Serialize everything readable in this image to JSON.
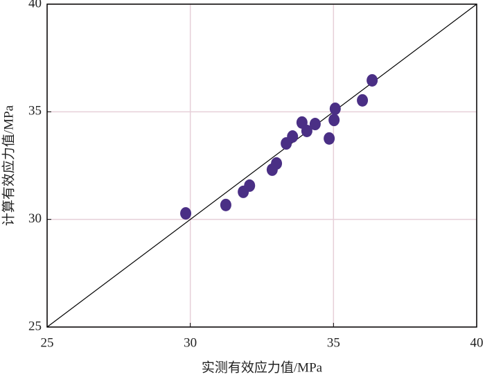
{
  "chart_data": {
    "type": "scatter",
    "x_label": "实测有效应力值/MPa",
    "y_label": "计算有效应力值/MPa",
    "x": [
      29.84,
      31.24,
      31.85,
      32.07,
      32.86,
      33.01,
      33.35,
      33.57,
      33.9,
      34.07,
      34.36,
      34.85,
      35.02,
      35.06,
      36.01,
      36.35
    ],
    "values": [
      30.28,
      30.67,
      31.28,
      31.57,
      32.31,
      32.6,
      33.53,
      33.85,
      34.5,
      34.11,
      34.43,
      33.76,
      34.62,
      35.14,
      35.53,
      36.46
    ],
    "color": "#4a2f85",
    "xlim": [
      25,
      40
    ],
    "ylim": [
      25,
      40
    ],
    "xticks": [
      25,
      30,
      35,
      40
    ],
    "yticks": [
      25,
      30,
      35,
      40
    ],
    "grid": true
  }
}
